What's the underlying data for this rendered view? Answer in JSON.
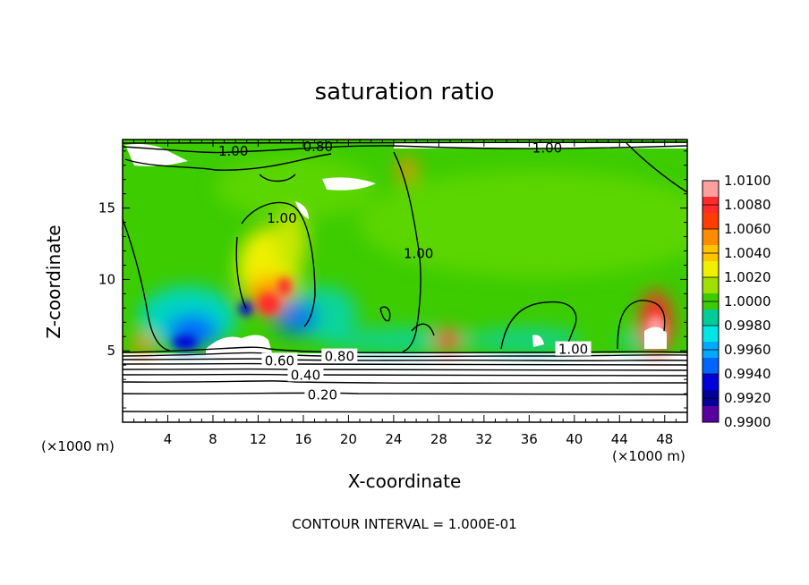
{
  "chart_data": {
    "type": "heatmap",
    "title": "saturation ratio",
    "xlabel": "X-coordinate",
    "ylabel": "Z-coordinate",
    "x_unit": "(×1000 m)",
    "x_unit_right": "(×1000 m)",
    "xlim": [
      0,
      50
    ],
    "ylim": [
      0,
      19.8
    ],
    "x_ticks": [
      4,
      8,
      12,
      16,
      20,
      24,
      28,
      32,
      36,
      40,
      44,
      48
    ],
    "y_ticks": [
      5,
      10,
      15
    ],
    "colorbar": {
      "levels": [
        "1.0100",
        "1.0080",
        "1.0060",
        "1.0040",
        "1.0020",
        "1.0000",
        "0.9980",
        "0.9960",
        "0.9940",
        "0.9920",
        "0.9900"
      ],
      "colors": [
        "#ff9f9f",
        "#ff2a2a",
        "#ff3d00",
        "#ff8c00",
        "#ffc400",
        "#f0f000",
        "#a0e000",
        "#3ccc00",
        "#00cc9a",
        "#00e6e6",
        "#00aaff",
        "#0064ff",
        "#0000dc",
        "#00009a",
        "#5a00a0"
      ]
    },
    "contour_labels": [
      {
        "text": "1.00",
        "x": 9.8,
        "z": 19.0
      },
      {
        "text": "0.80",
        "x": 17.3,
        "z": 19.3
      },
      {
        "text": "1.00",
        "x": 37.6,
        "z": 19.2
      },
      {
        "text": "1.00",
        "x": 14.1,
        "z": 14.3
      },
      {
        "text": "1.00",
        "x": 26.2,
        "z": 11.8
      },
      {
        "text": "1.00",
        "x": 39.9,
        "z": 5.1
      },
      {
        "text": "0.60",
        "x": 13.9,
        "z": 4.3
      },
      {
        "text": "0.80",
        "x": 19.2,
        "z": 4.6
      },
      {
        "text": "0.40",
        "x": 16.2,
        "z": 3.3
      },
      {
        "text": "0.20",
        "x": 17.7,
        "z": 1.9
      }
    ],
    "contour_interval": "CONTOUR INTERVAL = 1.000E-01"
  }
}
